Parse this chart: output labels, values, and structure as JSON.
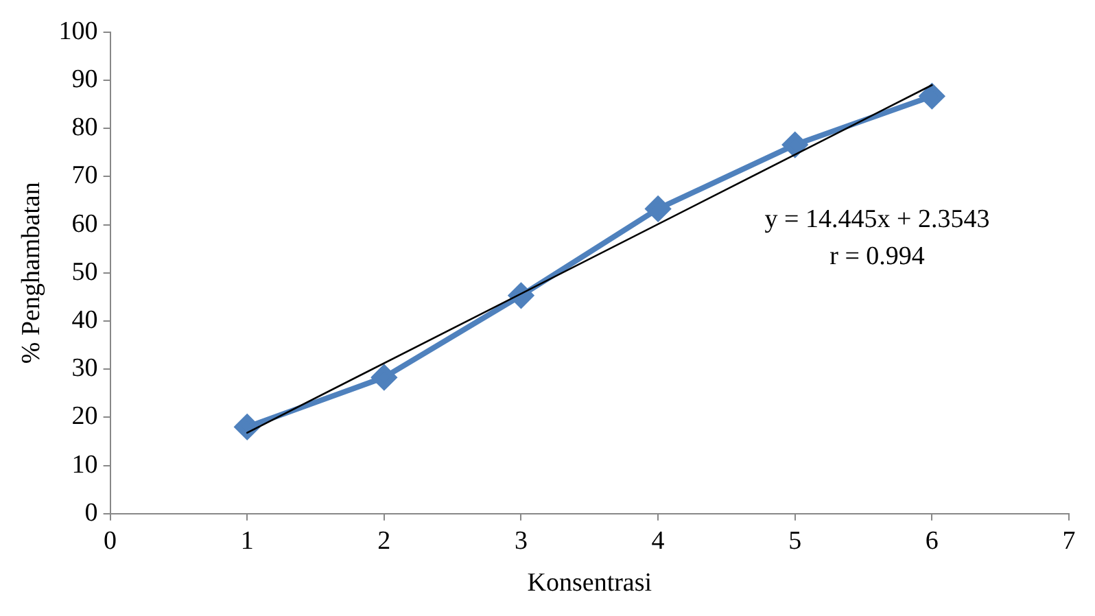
{
  "chart_data": {
    "type": "line",
    "xlabel": "Konsentrasi",
    "ylabel": "% Penghambatan",
    "xlim": [
      0,
      7
    ],
    "xticks": [
      0,
      1,
      2,
      3,
      4,
      5,
      6,
      7
    ],
    "ylim": [
      0,
      100
    ],
    "yticks": [
      0,
      10,
      20,
      30,
      40,
      50,
      60,
      70,
      80,
      90,
      100
    ],
    "grid": false,
    "legend": false,
    "line_style": "solid",
    "series": [
      {
        "type": "line",
        "color": "#4f81bd",
        "marker": "diamond",
        "x": [
          1,
          2,
          3,
          4,
          5,
          6
        ],
        "values": [
          18,
          28.3,
          45.3,
          63.3,
          76.6,
          86.7
        ]
      },
      {
        "type": "line",
        "color": "#000000",
        "marker": "none",
        "x": [
          1,
          6
        ],
        "values": [
          16.8,
          89
        ]
      }
    ],
    "annotations": [
      "y = 14.445x + 2.3543",
      "r = 0.994"
    ]
  }
}
